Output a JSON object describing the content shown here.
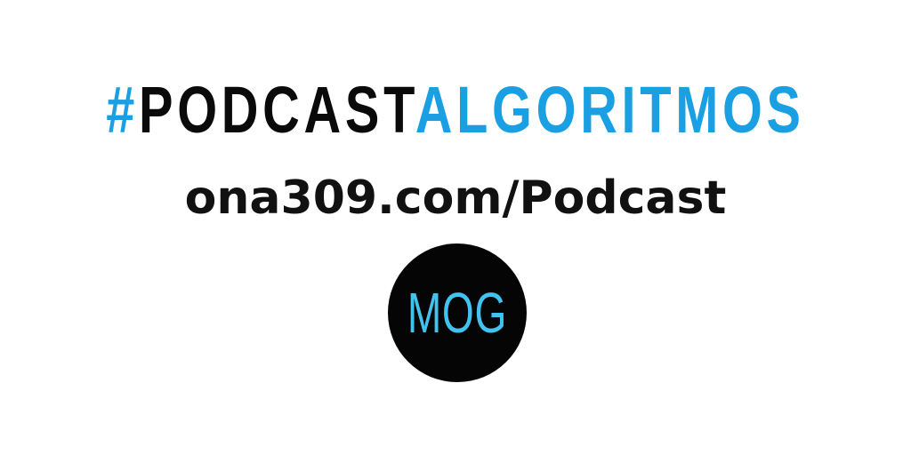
{
  "headline": {
    "hash": "#",
    "part1": "PODCAST",
    "part2": "ALGORITMOS"
  },
  "url": "ona309.com/Podcast",
  "logo": {
    "text": "MOG"
  },
  "colors": {
    "accent_blue": "#1aa0e2",
    "logo_text": "#41c3ef",
    "text_black": "#0a0a0a",
    "background": "#ffffff"
  }
}
